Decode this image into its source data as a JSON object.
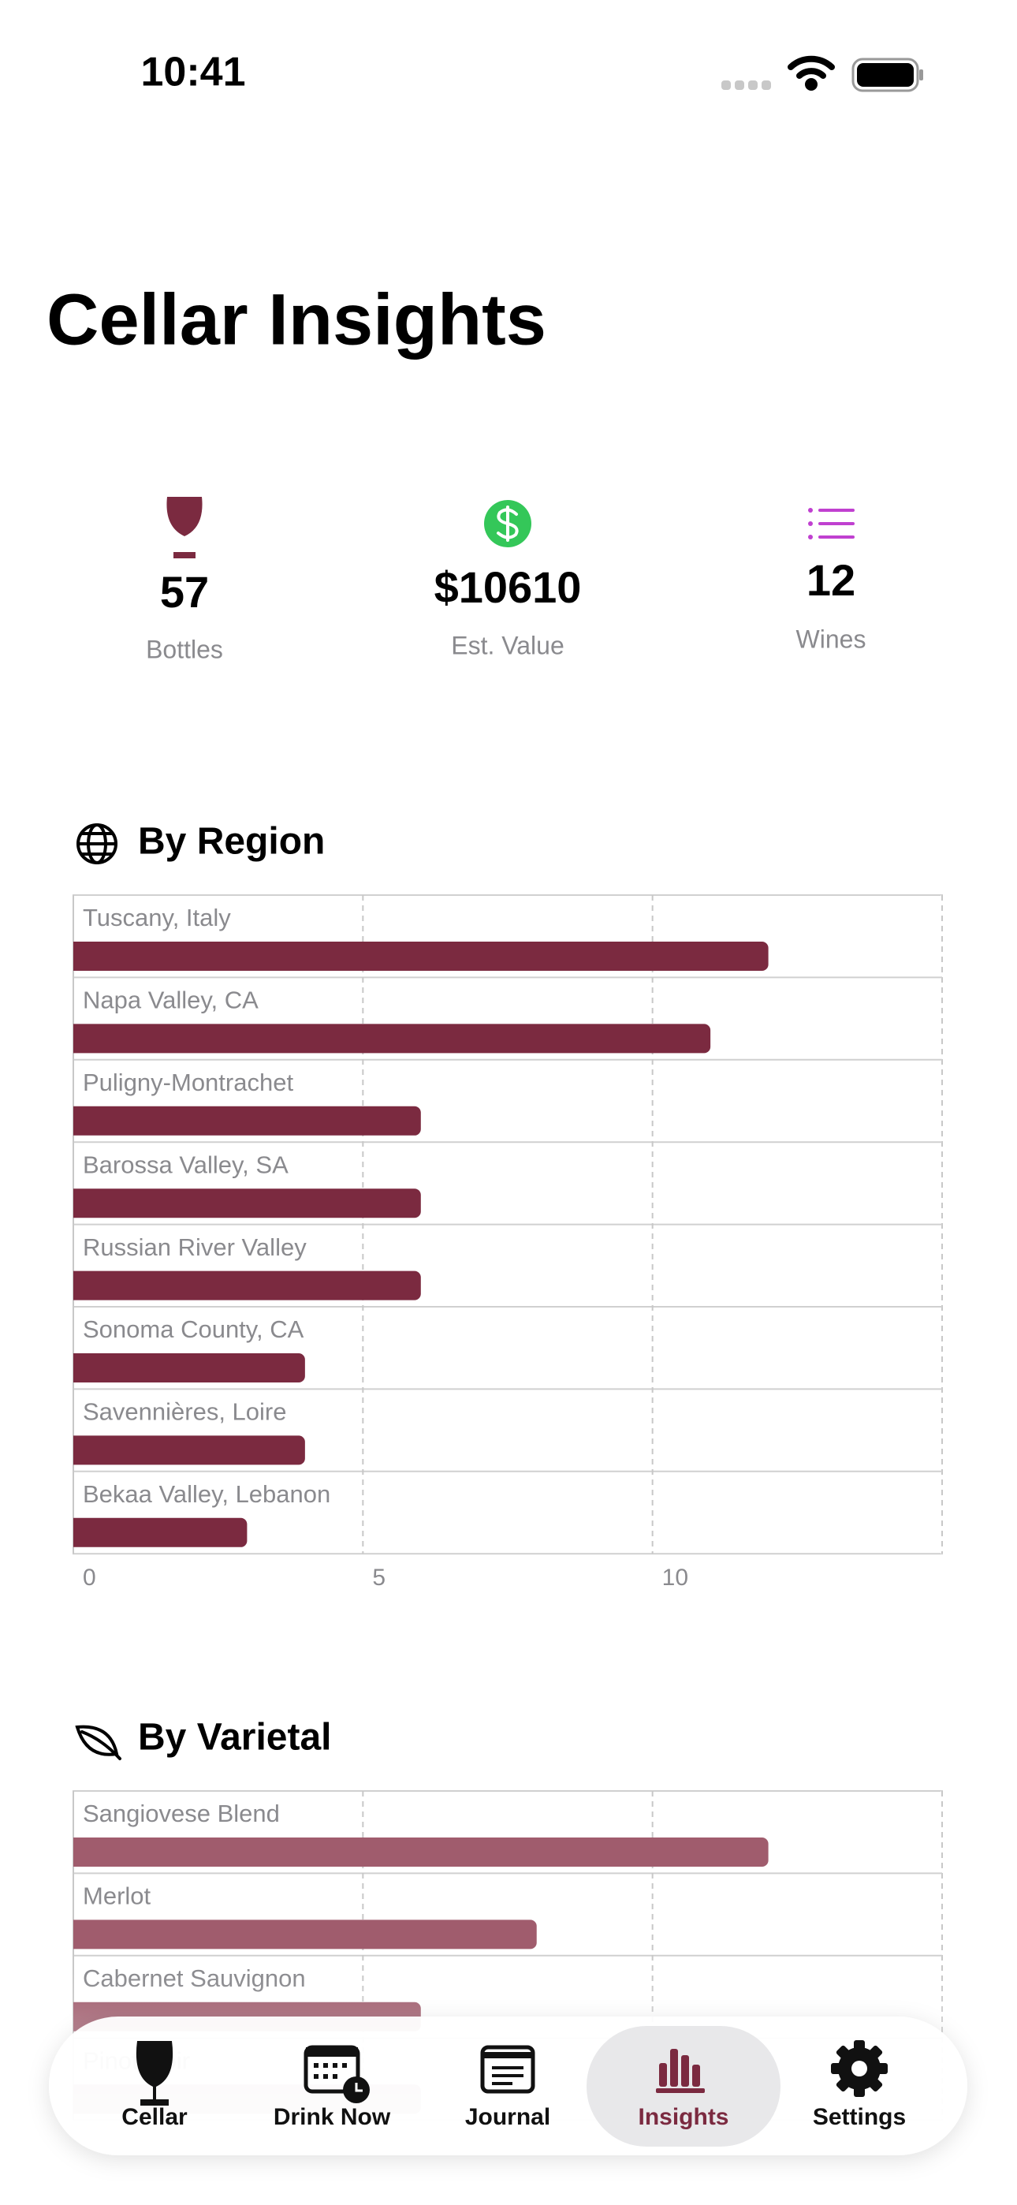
{
  "status_bar": {
    "time": "10:41"
  },
  "header": {
    "title": "Cellar Insights"
  },
  "stats": [
    {
      "value": "57",
      "label": "Bottles"
    },
    {
      "value": "$10610",
      "label": "Est. Value"
    },
    {
      "value": "12",
      "label": "Wines"
    }
  ],
  "chart_data": [
    {
      "type": "bar",
      "horizontal": true,
      "title": "By Region",
      "categories": [
        "Tuscany, Italy",
        "Napa Valley, CA",
        "Puligny-Montrachet",
        "Barossa Valley, SA",
        "Russian River Valley",
        "Sonoma County, CA",
        "Savennières, Loire",
        "Bekaa Valley, Lebanon"
      ],
      "values": [
        12,
        11,
        6,
        6,
        6,
        4,
        4,
        3
      ],
      "color": "#7b2a40",
      "xlim": [
        0,
        15
      ],
      "xticks": [
        0,
        5,
        10
      ],
      "grid": true
    },
    {
      "type": "bar",
      "horizontal": true,
      "title": "By Varietal",
      "categories": [
        "Sangiovese Blend",
        "Merlot",
        "Cabernet Sauvignon",
        "Pinot Noir"
      ],
      "values": [
        12,
        8,
        6,
        6
      ],
      "color": "#a05c6d",
      "xlim": [
        0,
        15
      ],
      "grid": true
    }
  ],
  "tab_bar": {
    "items": [
      "Cellar",
      "Drink Now",
      "Journal",
      "Insights",
      "Settings"
    ],
    "selected_index": 3
  }
}
